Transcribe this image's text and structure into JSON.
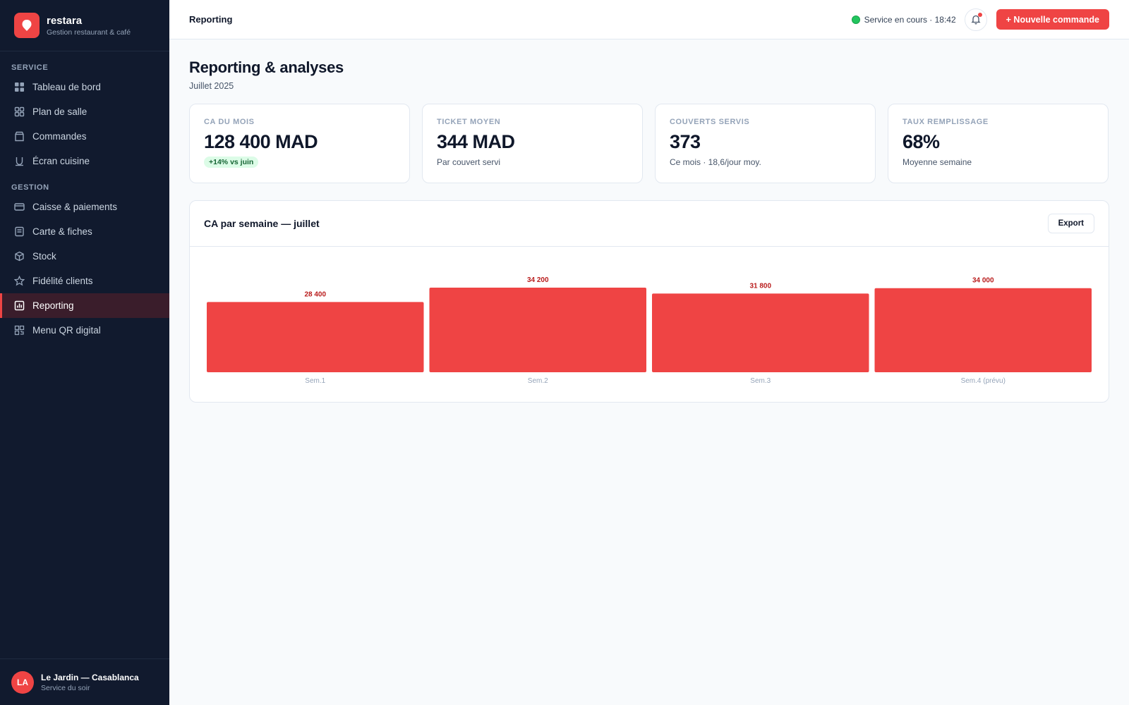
{
  "brand": {
    "name": "restara",
    "tagline": "Gestion restaurant & café"
  },
  "sidebar": {
    "section_service": "SERVICE",
    "section_gestion": "GESTION",
    "service_items": [
      {
        "label": "Tableau de bord",
        "icon": "dashboard-icon"
      },
      {
        "label": "Plan de salle",
        "icon": "floor-plan-icon"
      },
      {
        "label": "Commandes",
        "icon": "orders-icon"
      },
      {
        "label": "Écran cuisine",
        "icon": "kitchen-icon"
      }
    ],
    "gestion_items": [
      {
        "label": "Caisse & paiements",
        "icon": "card-icon"
      },
      {
        "label": "Carte & fiches",
        "icon": "menu-card-icon"
      },
      {
        "label": "Stock",
        "icon": "box-icon"
      },
      {
        "label": "Fidélité clients",
        "icon": "star-icon"
      },
      {
        "label": "Reporting",
        "icon": "report-icon",
        "active": true
      },
      {
        "label": "Menu QR digital",
        "icon": "qr-icon"
      }
    ],
    "footer": {
      "initials": "LA",
      "venue": "Le Jardin — Casablanca",
      "shift": "Service du soir"
    }
  },
  "topbar": {
    "title": "Reporting",
    "status": "Service en cours · 18:42",
    "new_order_label": "+ Nouvelle commande"
  },
  "page": {
    "title": "Reporting & analyses",
    "subtitle": "Juillet 2025"
  },
  "kpis": [
    {
      "label": "CA DU MOIS",
      "value": "128 400 MAD",
      "badge": "+14% vs juin"
    },
    {
      "label": "TICKET MOYEN",
      "value": "344 MAD",
      "sub": "Par couvert servi"
    },
    {
      "label": "COUVERTS SERVIS",
      "value": "373",
      "sub": "Ce mois · 18,6/jour moy."
    },
    {
      "label": "TAUX REMPLISSAGE",
      "value": "68%",
      "sub": "Moyenne semaine"
    }
  ],
  "panel": {
    "title": "CA par semaine — juillet",
    "export_label": "Export"
  },
  "chart_data": {
    "type": "bar",
    "categories": [
      "Sem.1",
      "Sem.2",
      "Sem.3",
      "Sem.4 (prévu)"
    ],
    "values": [
      28400,
      34200,
      31800,
      34000
    ],
    "value_labels": [
      "28 400",
      "34 200",
      "31 800",
      "34 000"
    ],
    "ylim": [
      0,
      34200
    ],
    "bar_color": "#ef4444",
    "label_color": "#b91c1c"
  },
  "colors": {
    "accent": "#ef4444",
    "sidebar_bg": "#111a2e",
    "status_green": "#22c55e"
  }
}
